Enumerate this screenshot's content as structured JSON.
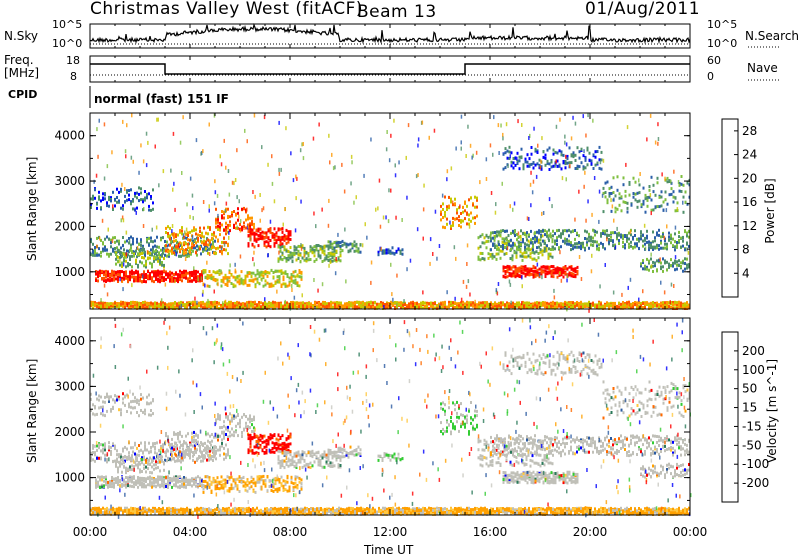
{
  "header": {
    "title": "Christmas Valley West (fitACF)",
    "beam": "Beam 13",
    "date": "01/Aug/2011"
  },
  "top_panels": {
    "nsky_label": "N.Sky",
    "nsky_ticks": [
      "10^5",
      "10^0"
    ],
    "nsky_right_ticks": [
      "10^5",
      "10^0"
    ],
    "nsearch_label": "N.Search",
    "freq_label": "Freq.",
    "freq_unit": "[MHz]",
    "freq_ticks": [
      "18",
      "8"
    ],
    "nave_ticks": [
      "60",
      "0"
    ],
    "nave_label": "Nave",
    "cpid_label": "CPID",
    "cpid_value": "normal (fast) 151 IF"
  },
  "colors": {
    "power": [
      "#0000ff",
      "#2b5fa8",
      "#4f8f6a",
      "#7fbf3f",
      "#c8c800",
      "#ff9900",
      "#ff5500",
      "#ff0000"
    ],
    "velocity": [
      "#ff0000",
      "#ff6a00",
      "#ffa000",
      "#ffc840",
      "#c8c8c0",
      "#33cc33",
      "#2a7a5a",
      "#2a5aa0",
      "#0000ff"
    ],
    "ground_scatter": "#c0c0b8"
  },
  "chart_data": [
    {
      "type": "heatmap",
      "name": "power",
      "xlabel": "",
      "ylabel": "Slant Range [km]",
      "x_ticks": [
        "00:00",
        "04:00",
        "08:00",
        "12:00",
        "16:00",
        "20:00",
        "00:00"
      ],
      "y_ticks": [
        1000,
        2000,
        3000,
        4000
      ],
      "x_range_hours": [
        0,
        24
      ],
      "y_range_km": [
        180,
        4500
      ],
      "colorbar_label": "Power [dB]",
      "colorbar_ticks": [
        4,
        8,
        12,
        16,
        20,
        24,
        28
      ],
      "colorbar_range": [
        0,
        30
      ]
    },
    {
      "type": "heatmap",
      "name": "velocity",
      "xlabel": "Time UT",
      "ylabel": "Slant Range [km]",
      "x_ticks": [
        "00:00",
        "04:00",
        "08:00",
        "12:00",
        "16:00",
        "20:00",
        "00:00"
      ],
      "y_ticks": [
        1000,
        2000,
        3000,
        4000
      ],
      "x_range_hours": [
        0,
        24
      ],
      "y_range_km": [
        180,
        4500
      ],
      "colorbar_label": "Velocity [m s^-1]",
      "colorbar_ticks": [
        "200",
        "100",
        "50",
        "15",
        "-15",
        "-50",
        "-100",
        "-200"
      ]
    }
  ]
}
